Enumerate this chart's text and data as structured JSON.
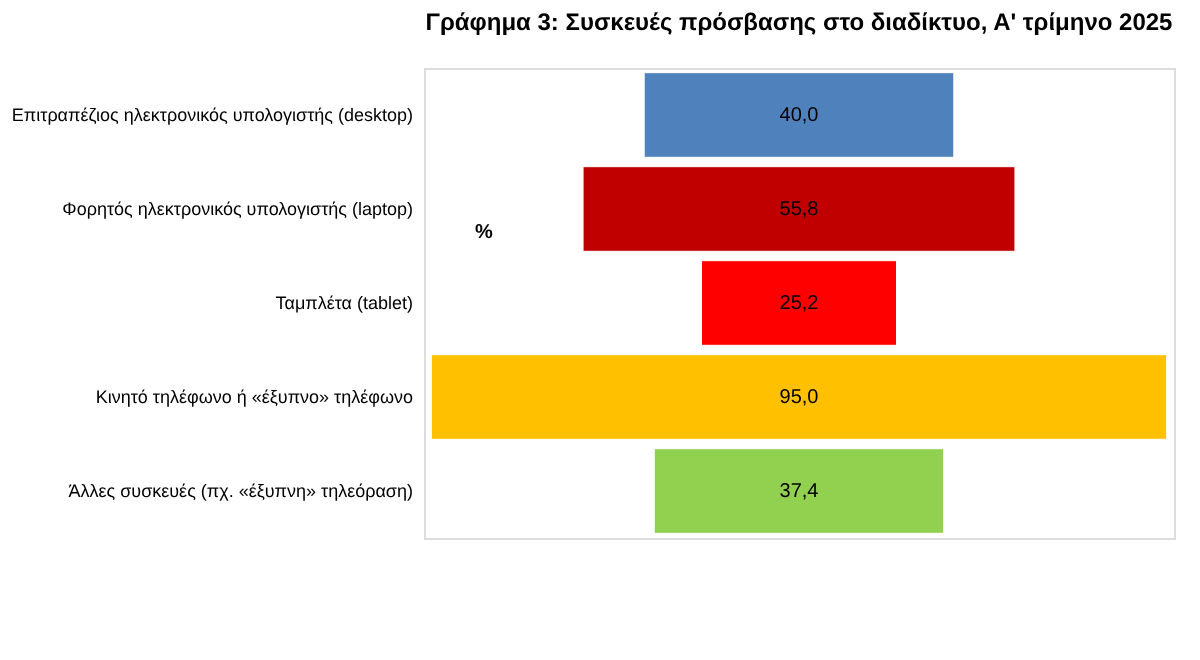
{
  "chart_data": {
    "type": "other",
    "title": "Γράφημα 3: Συσκευές πρόσβασης στο διαδίκτυο, Α' τρίμηνο 2025",
    "categories": [
      "Επιτραπέζιος ηλεκτρονικός υπολογιστής (desktop)",
      "Φορητός ηλεκτρονικός υπολογιστής (laptop)",
      "Ταμπλέτα (tablet)",
      "Κινητό τηλέφωνο ή «έξυπνο» τηλέφωνο",
      "Άλλες συσκευές (πχ. «έξυπνη» τηλεόραση)"
    ],
    "values": [
      40.0,
      55.8,
      25.2,
      95.0,
      37.4
    ],
    "value_labels": [
      "40,0",
      "55,8",
      "25,2",
      "95,0",
      "37,4"
    ],
    "colors": [
      "#4f81bd",
      "#c00000",
      "#ff0000",
      "#ffc000",
      "#92d050"
    ],
    "annotations": [
      "%"
    ]
  }
}
